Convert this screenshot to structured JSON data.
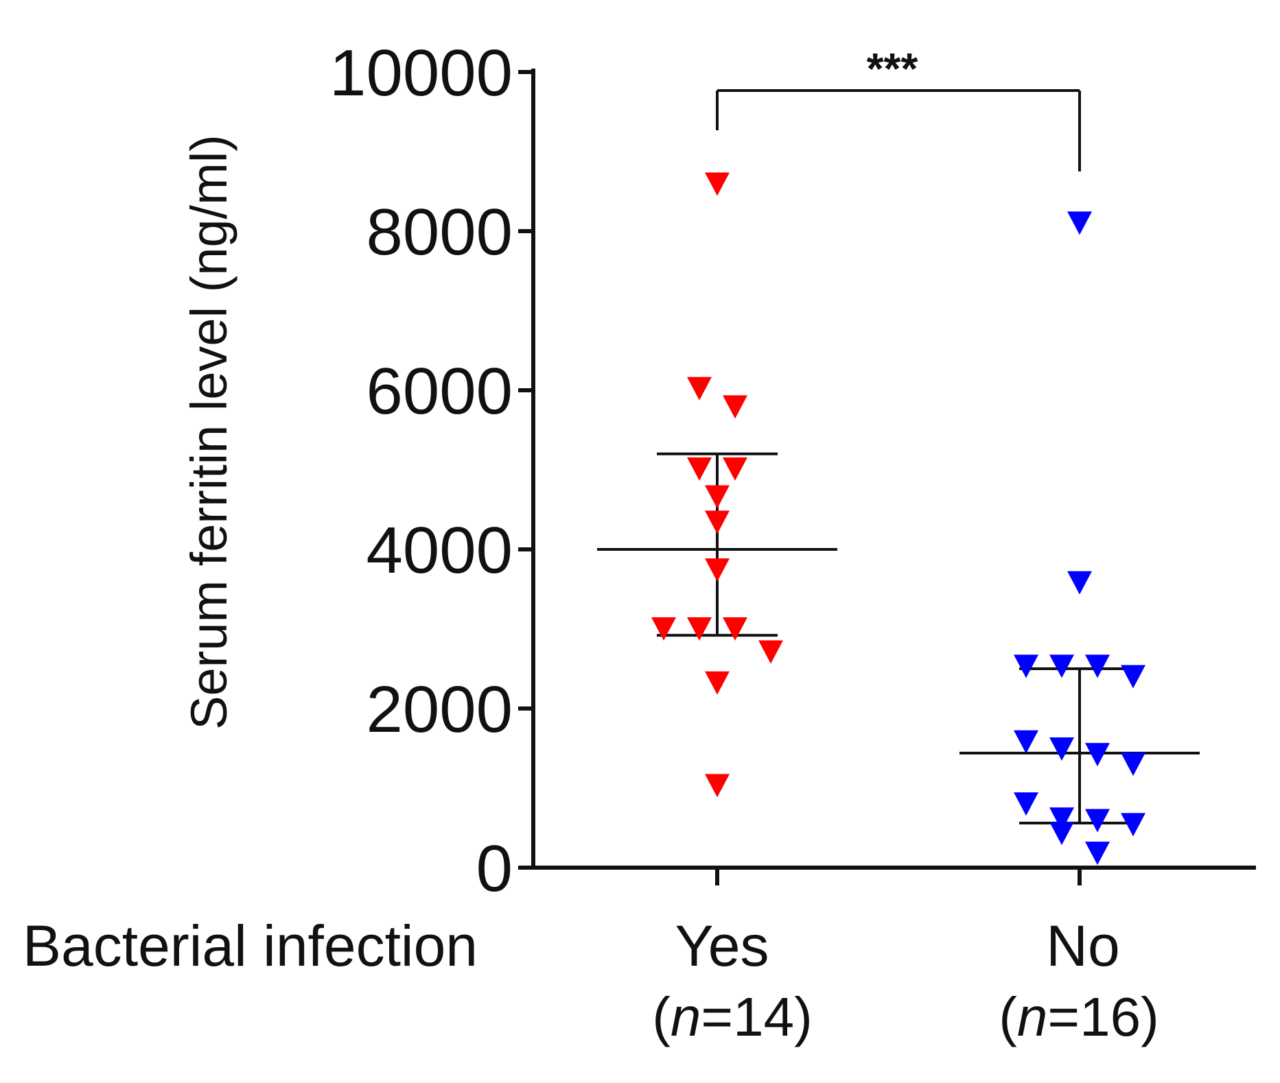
{
  "chart_data": {
    "type": "scatter",
    "ylabel": "Serum ferritin level (ng/ml)",
    "xlabel": "Bacterial infection",
    "ylim": [
      0,
      10000
    ],
    "yticks": [
      0,
      2000,
      4000,
      6000,
      8000,
      10000
    ],
    "ytick_labels": [
      "0",
      "2000",
      "4000",
      "6000",
      "8000",
      "10000"
    ],
    "significance": "***",
    "groups": [
      {
        "label": "Yes",
        "n_prefix": "(",
        "n_var": "n",
        "n_suffix": "=14)",
        "color": "#ff0000",
        "marker": "down-triangle",
        "mean": 4000,
        "sd_upper": 5200,
        "sd_lower": 2920,
        "values": [
          8590,
          6020,
          5790,
          5010,
          5010,
          4660,
          4340,
          3740,
          3000,
          3000,
          3000,
          2710,
          2320,
          1030
        ]
      },
      {
        "label": "No",
        "n_prefix": "(",
        "n_var": "n",
        "n_suffix": "=16)",
        "color": "#0000ff",
        "marker": "down-triangle",
        "mean": 1440,
        "sd_upper": 2500,
        "sd_lower": 560,
        "values": [
          8100,
          3580,
          2530,
          2530,
          2530,
          2400,
          1580,
          1490,
          1420,
          1300,
          800,
          610,
          590,
          540,
          430,
          180
        ]
      }
    ]
  }
}
